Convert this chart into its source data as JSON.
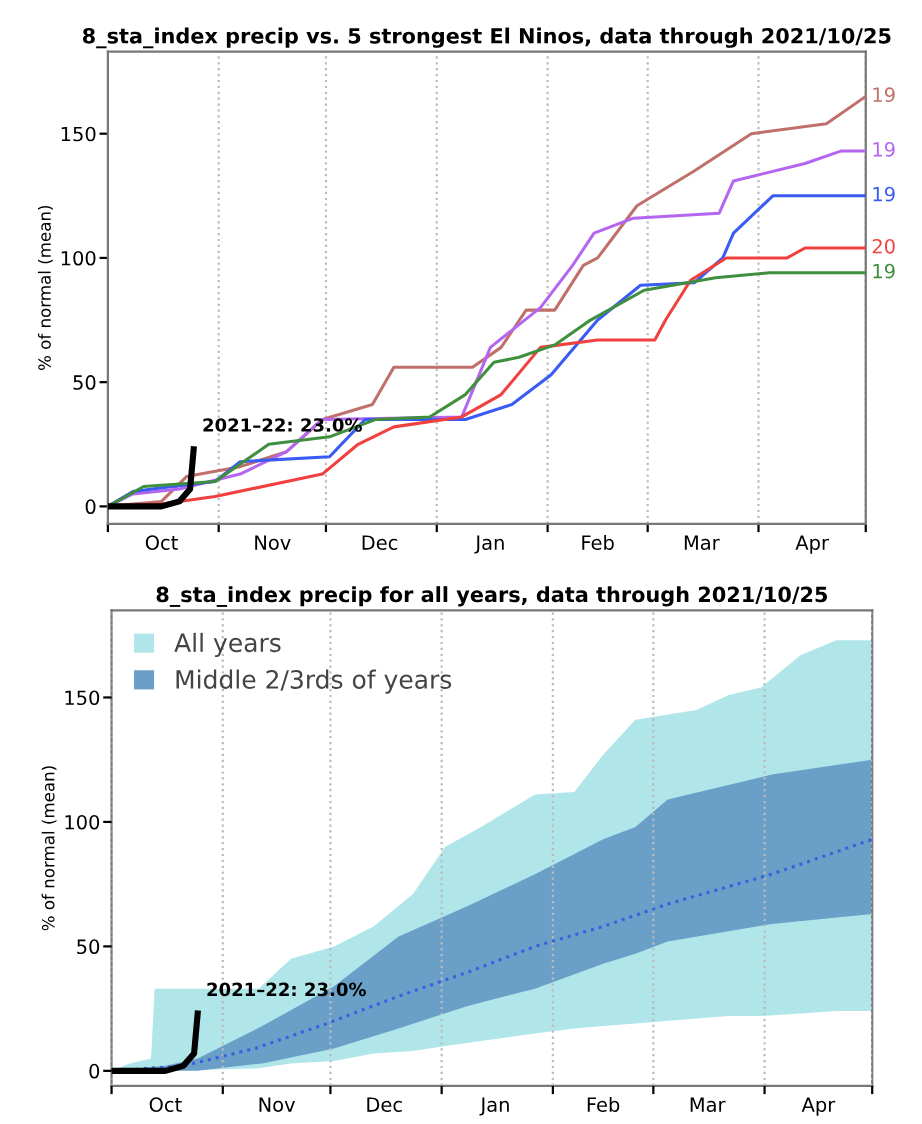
{
  "chart_data": [
    {
      "type": "line",
      "title": "8_sta_index precip vs. 5 strongest El Ninos, data through 2021/10/25",
      "ylabel": "% of normal (mean)",
      "xlim": [
        "2021-10-01",
        "2022-05-01"
      ],
      "ylim": [
        -7,
        183
      ],
      "yticks": [
        0,
        50,
        100,
        150
      ],
      "xticks": [
        {
          "value": "2021-10-01",
          "label": null
        },
        {
          "value": "2021-10-16",
          "label": "Oct"
        },
        {
          "value": "2021-11-01",
          "label": null
        },
        {
          "value": "2021-11-16",
          "label": "Nov"
        },
        {
          "value": "2021-12-01",
          "label": null
        },
        {
          "value": "2021-12-16",
          "label": "Dec"
        },
        {
          "value": "2022-01-01",
          "label": null
        },
        {
          "value": "2022-01-16",
          "label": "Jan"
        },
        {
          "value": "2022-02-01",
          "label": null
        },
        {
          "value": "2022-02-15",
          "label": "Feb"
        },
        {
          "value": "2022-03-01",
          "label": null
        },
        {
          "value": "2022-03-16",
          "label": "Mar"
        },
        {
          "value": "2022-04-01",
          "label": null
        },
        {
          "value": "2022-04-16",
          "label": "Apr"
        },
        {
          "value": "2022-05-01",
          "label": null
        }
      ],
      "grid": "x",
      "series": [
        {
          "name": "19",
          "color": "#c0706a",
          "x": [
            "2021-10-01",
            "2021-10-16",
            "2021-10-23",
            "2021-11-07",
            "2021-11-20",
            "2021-11-30",
            "2021-12-14",
            "2021-12-20",
            "2022-01-11",
            "2022-01-19",
            "2022-01-26",
            "2022-02-03",
            "2022-02-11",
            "2022-02-15",
            "2022-02-26",
            "2022-03-14",
            "2022-03-30",
            "2022-04-20",
            "2022-05-01"
          ],
          "values": [
            0,
            2,
            12,
            16,
            22,
            35,
            41,
            56,
            56,
            64,
            79,
            79,
            97,
            100,
            121,
            135,
            150,
            154,
            165
          ]
        },
        {
          "name": "19",
          "color": "#b566f0",
          "x": [
            "2021-10-01",
            "2021-10-08",
            "2021-10-21",
            "2021-11-07",
            "2021-11-20",
            "2021-11-30",
            "2022-01-08",
            "2022-01-16",
            "2022-01-30",
            "2022-02-08",
            "2022-02-14",
            "2022-02-25",
            "2022-03-21",
            "2022-03-25",
            "2022-04-14",
            "2022-04-24",
            "2022-05-01"
          ],
          "values": [
            0,
            5,
            7,
            13,
            22,
            35,
            36,
            64,
            80,
            97,
            110,
            116,
            118,
            131,
            138,
            143,
            143
          ]
        },
        {
          "name": "19",
          "color": "#3a5cf5",
          "x": [
            "2021-10-01",
            "2021-10-08",
            "2021-10-19",
            "2021-10-31",
            "2021-11-07",
            "2021-12-02",
            "2021-12-12",
            "2022-01-09",
            "2022-01-22",
            "2022-02-02",
            "2022-02-15",
            "2022-02-27",
            "2022-03-14",
            "2022-03-22",
            "2022-03-25",
            "2022-04-05",
            "2022-05-01"
          ],
          "values": [
            0,
            6,
            8,
            10,
            18,
            20,
            35,
            35,
            41,
            53,
            75,
            89,
            90,
            100,
            110,
            125,
            125
          ]
        },
        {
          "name": "20",
          "color": "#f04040",
          "x": [
            "2021-10-01",
            "2021-10-16",
            "2021-10-31",
            "2021-11-30",
            "2021-12-10",
            "2021-12-20",
            "2022-01-08",
            "2022-01-19",
            "2022-01-30",
            "2022-02-15",
            "2022-03-03",
            "2022-03-06",
            "2022-03-13",
            "2022-03-23",
            "2022-04-09",
            "2022-04-14",
            "2022-05-01"
          ],
          "values": [
            0,
            1,
            4,
            13,
            25,
            32,
            36,
            45,
            64,
            67,
            67,
            75,
            91,
            100,
            100,
            104,
            104
          ]
        },
        {
          "name": "19",
          "color": "#3f8f3f",
          "x": [
            "2021-10-01",
            "2021-10-11",
            "2021-10-31",
            "2021-11-15",
            "2021-12-02",
            "2021-12-15",
            "2021-12-30",
            "2022-01-09",
            "2022-01-17",
            "2022-01-24",
            "2022-02-03",
            "2022-02-13",
            "2022-02-28",
            "2022-03-20",
            "2022-04-04",
            "2022-05-01"
          ],
          "values": [
            0,
            8,
            10,
            25,
            28,
            35,
            36,
            45,
            58,
            60,
            65,
            75,
            87,
            92,
            94,
            94
          ]
        },
        {
          "color": "#000000",
          "x": [
            "2021-10-01",
            "2021-10-16",
            "2021-10-21",
            "2021-10-24",
            "2021-10-25"
          ],
          "values": [
            0,
            0,
            2,
            7,
            23
          ]
        }
      ],
      "annotations": [
        {
          "text": "2021–22: 23.0%",
          "x": "2021-10-25",
          "y": 23
        }
      ]
    },
    {
      "type": "area",
      "title": "8_sta_index precip for all years, data through 2021/10/25",
      "ylabel": "% of normal (mean)",
      "xlim": [
        "2021-10-01",
        "2022-05-01"
      ],
      "ylim": [
        -6,
        185
      ],
      "yticks": [
        0,
        50,
        100,
        150
      ],
      "xticks": [
        {
          "value": "2021-10-01",
          "label": null
        },
        {
          "value": "2021-10-16",
          "label": "Oct"
        },
        {
          "value": "2021-11-01",
          "label": null
        },
        {
          "value": "2021-11-16",
          "label": "Nov"
        },
        {
          "value": "2021-12-01",
          "label": null
        },
        {
          "value": "2021-12-16",
          "label": "Dec"
        },
        {
          "value": "2022-01-01",
          "label": null
        },
        {
          "value": "2022-01-16",
          "label": "Jan"
        },
        {
          "value": "2022-02-01",
          "label": null
        },
        {
          "value": "2022-02-15",
          "label": "Feb"
        },
        {
          "value": "2022-03-01",
          "label": null
        },
        {
          "value": "2022-03-16",
          "label": "Mar"
        },
        {
          "value": "2022-04-01",
          "label": null
        },
        {
          "value": "2022-04-16",
          "label": "Apr"
        },
        {
          "value": "2022-05-01",
          "label": null
        }
      ],
      "grid": "x",
      "legend": "top left",
      "series": [
        {
          "name": "All years",
          "color": "#b0e6ea",
          "x": [
            "2021-10-01",
            "2021-10-06",
            "2021-10-12",
            "2021-10-13",
            "2021-11-11",
            "2021-11-20",
            "2021-12-02",
            "2021-12-13",
            "2021-12-24",
            "2022-01-02",
            "2022-01-12",
            "2022-01-27",
            "2022-02-07",
            "2022-02-15",
            "2022-02-24",
            "2022-03-13",
            "2022-03-22",
            "2022-03-31",
            "2022-04-11",
            "2022-04-21",
            "2022-05-01"
          ],
          "values": [
            null,
            null,
            null,
            null,
            null,
            null,
            null,
            null,
            null,
            null,
            null,
            null,
            null,
            null,
            null,
            null,
            null,
            null,
            null,
            null,
            null
          ],
          "upper": [
            0,
            3,
            5,
            33,
            33,
            45,
            50,
            58,
            71,
            90,
            98,
            111,
            112,
            127,
            141,
            145,
            151,
            154,
            167,
            173,
            173
          ],
          "lower": [
            0,
            0,
            0,
            0,
            1,
            3,
            4,
            7,
            8,
            10,
            12,
            15,
            17,
            18,
            19,
            21,
            22,
            22,
            23,
            24,
            24
          ]
        },
        {
          "name": "Middle 2/3rds of years",
          "color": "#6a9fc8",
          "x": [
            "2021-10-01",
            "2021-10-16",
            "2021-10-25",
            "2021-11-12",
            "2021-12-02",
            "2021-12-20",
            "2022-01-08",
            "2022-01-27",
            "2022-02-15",
            "2022-02-24",
            "2022-03-05",
            "2022-04-03",
            "2022-05-01"
          ],
          "values": [
            null,
            null,
            null,
            null,
            null,
            null,
            null,
            null,
            null,
            null,
            null,
            null,
            null
          ],
          "upper": [
            0,
            2,
            5,
            18,
            34,
            54,
            66,
            79,
            93,
            98,
            109,
            119,
            125
          ],
          "lower": [
            0,
            0,
            0,
            3,
            9,
            17,
            26,
            33,
            43,
            47,
            52,
            59,
            63
          ]
        },
        {
          "type": "line",
          "color": "#3a60e0",
          "line_style": "dotted",
          "x": [
            "2021-10-01",
            "2021-10-21",
            "2021-11-10",
            "2021-11-30",
            "2021-12-20",
            "2022-01-09",
            "2022-01-27",
            "2022-02-15",
            "2022-03-05",
            "2022-04-03",
            "2022-04-19",
            "2022-05-01"
          ],
          "values": [
            0,
            2,
            9,
            19,
            30,
            40,
            50,
            58,
            67,
            79,
            87,
            93
          ]
        },
        {
          "type": "line",
          "color": "#000000",
          "x": [
            "2021-10-01",
            "2021-10-16",
            "2021-10-21",
            "2021-10-24",
            "2021-10-25"
          ],
          "values": [
            0,
            0,
            2,
            7,
            23
          ]
        }
      ],
      "annotations": [
        {
          "text": "2021–22: 23.0%",
          "x": "2021-10-25",
          "y": 23
        }
      ]
    }
  ]
}
